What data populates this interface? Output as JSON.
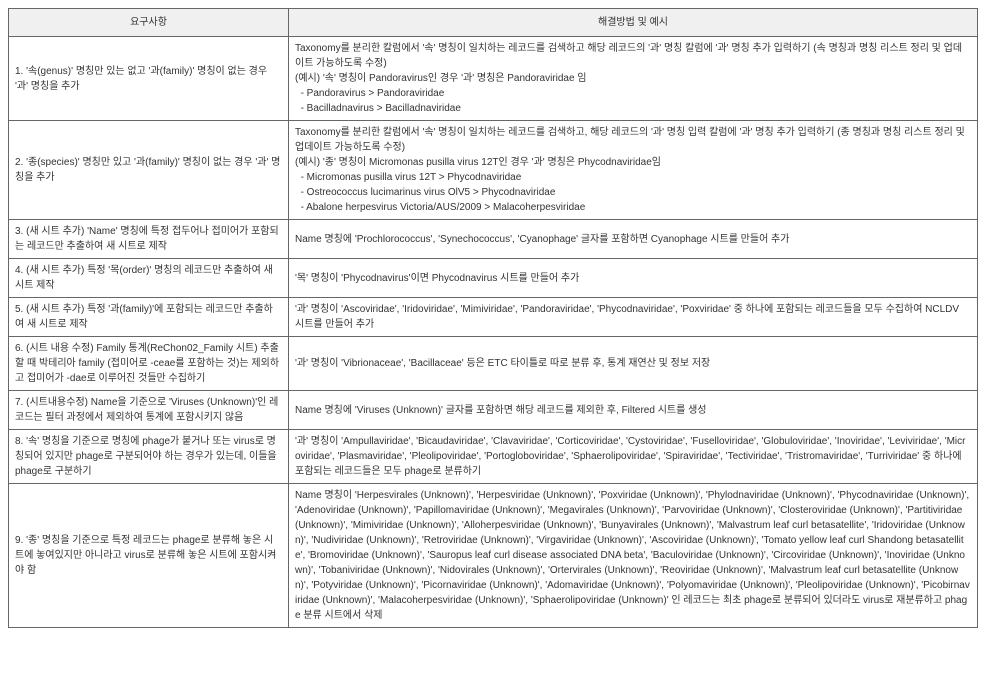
{
  "table": {
    "headers": [
      "요구사항",
      "해결방법 및 예시"
    ],
    "rows": [
      {
        "req": "1. '속(genus)' 명칭만 있는 없고 '과(family)' 명칭이 없는 경우 '과' 명칭을 추가",
        "sol": "Taxonomy를 분리한 칼럼에서 '속' 명칭이 일치하는 레코드를 검색하고 해당 레코드의 '과' 명칭 칼럼에 '과' 명칭 추가 입력하기 (속 명칭과 명칭 리스트 정리 및 업데이트 가능하도록 수정)\n(예시) '속' 명칭이 Pandoravirus인 경우 '과' 명칭은 Pandoraviridae 임\n  - Pandoravirus > Pandoraviridae\n  - Bacilladnavirus > Bacilladnaviridae"
      },
      {
        "req": "2. '종(species)' 명칭만 있고 '과(family)' 명칭이 없는 경우 '과' 명칭을 추가",
        "sol": "Taxonomy를 분리한 칼럼에서 '속' 명칭이 일치하는 레코드를 검색하고, 해당 레코드의 '과' 명칭 입력 칼럼에 '과' 명칭 추가 입력하기 (종 명칭과 명칭 리스트 정리 및 업데이트 가능하도록 수정)\n(예시) '종' 명칭이 Micromonas pusilla virus 12T인 경우 '과' 명칭은 Phycodnaviridae임\n  - Micromonas pusilla virus 12T > Phycodnaviridae\n  - Ostreococcus lucimarinus virus OlV5 > Phycodnaviridae\n  - Abalone herpesvirus Victoria/AUS/2009 > Malacoherpesviridae"
      },
      {
        "req": "3. (새 시트 추가) 'Name' 명칭에 특정 접두어나 접미어가 포함되는 레코드만 추출하여 새 시트로 제작",
        "sol": "Name 명칭에 'Prochlorococcus', 'Synechococcus', 'Cyanophage' 글자를 포함하면 Cyanophage 시트를 만들어 추가"
      },
      {
        "req": "4. (새 시트 추가) 특정 '목(order)' 명칭의 레코드만 추출하여 새 시트 제작",
        "sol": "'목' 명칭이 'Phycodnavirus'이면 Phycodnavirus 시트를 만들어 추가"
      },
      {
        "req": "5. (새 시트 추가) 특정 '과(family)'에 포함되는 레코드만 추출하여 새 시트로 제작",
        "sol": "'과' 명칭이 'Ascoviridae', 'Iridoviridae', 'Mimiviridae', 'Pandoraviridae', 'Phycodnaviridae', 'Poxviridae' 중 하나에 포함되는 레코드들을 모두 수집하여 NCLDV 시트를 만들어 추가"
      },
      {
        "req": "6. (시트 내용 수정) Family 통계(ReChon02_Family 시트) 추출할 때 박테리아 family (접미어로 -ceae를 포함하는 것)는 제외하고 접미어가 -dae로 이루어진 것들만 수집하기",
        "sol": "'과' 명칭이 'Vibrionaceae', 'Bacillaceae' 등은 ETC 타이틀로 따로 분류 후, 통계 재연산 및 정보 저장"
      },
      {
        "req": "7. (시트내용수정) Name을 기준으로 'Viruses (Unknown)'인 레코드는 필터 과정에서 제외하여 통계에 포함시키지 않음",
        "sol": "Name 명칭에 'Viruses (Unknown)' 글자를 포함하면 해당 레코드를 제외한 후, Filtered 시트를 생성"
      },
      {
        "req": "8. '속' 명칭을 기준으로 명칭에 phage가 붙거나 또는 virus로 명칭되어 있지만 phage로 구분되어야 하는 경우가 있는데, 이들을 phage로 구분하기",
        "sol": "'과' 명칭이 'Ampullaviridae', 'Bicaudaviridae', 'Clavaviridae', 'Corticoviridae', 'Cystoviridae', 'Fuselloviridae', 'Globuloviridae', 'Inoviridae', 'Leviviridae', 'Microviridae', 'Plasmaviridae', 'Pleolipoviridae', 'Portogloboviridae', 'Sphaerolipoviridae', 'Spiraviridae', 'Tectiviridae', 'Tristromaviridae', 'Turriviridae' 중 하나에 포함되는 레코드들은 모두 phage로 분류하기"
      },
      {
        "req": "9. '종' 명칭을 기준으로 특정 레코드는 phage로 분류해 놓은 시트에 놓여있지만 아니라고 virus로 분류해 놓은 시트에 포함시켜야 함",
        "sol": "Name 명칭이 'Herpesvirales (Unknown)', 'Herpesviridae (Unknown)', 'Poxviridae (Unknown)', 'Phylodnaviridae (Unknown)', 'Phycodnaviridae (Unknown)', 'Adenoviridae (Unknown)', 'Papillomaviridae (Unknown)', 'Megavirales (Unknown)', 'Parvoviridae (Unknown)', 'Closteroviridae (Unknown)', 'Partitiviridae (Unknown)', 'Mimiviridae (Unknown)', 'Alloherpesviridae (Unknown)', 'Bunyavirales (Unknown)', 'Malvastrum leaf curl betasatellite', 'Iridoviridae (Unknown)', 'Nudiviridae (Unknown)', 'Retroviridae (Unknown)', 'Virgaviridae (Unknown)', 'Ascoviridae (Unknown)', 'Tomato yellow leaf curl Shandong betasatellite', 'Bromoviridae (Unknown)', 'Sauropus leaf curl disease associated DNA beta', 'Baculoviridae (Unknown)', 'Circoviridae (Unknown)', 'Inoviridae (Unknown)', 'Tobaniviridae (Unknown)', 'Nidovirales (Unknown)', 'Ortervirales (Unknown)', 'Reoviridae (Unknown)', 'Malvastrum leaf curl betasatellite (Unknown)', 'Potyviridae (Unknown)', 'Picornaviridae (Unknown)', 'Adomaviridae (Unknown)', 'Polyomaviridae (Unknown)', 'Pleolipoviridae (Unknown)', 'Picobirnaviridae (Unknown)', 'Malacoherpesviridae (Unknown)', 'Sphaerolipoviridae (Unknown)' 인 레코드는 최초 phage로 분류되어 있더라도 virus로 재분류하고 phage 분류 시트에서 삭제"
      }
    ]
  }
}
